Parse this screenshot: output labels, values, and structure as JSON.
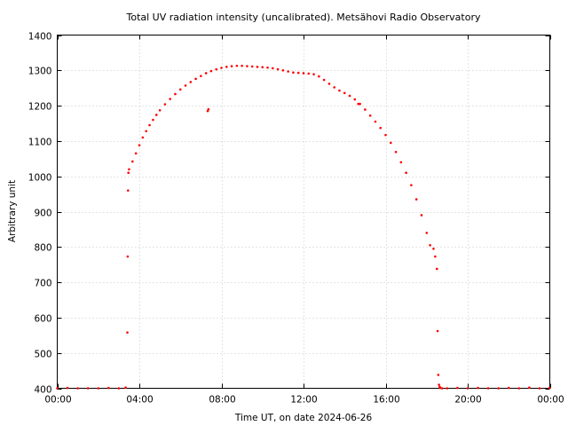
{
  "chart_data": {
    "type": "scatter",
    "title": "Total UV radiation intensity (uncalibrated). Metsähovi Radio Observatory",
    "xlabel": "Time UT, on date 2024-06-26",
    "ylabel": "Arbitrary unit",
    "xlim": [
      "00:00",
      "24:00"
    ],
    "ylim": [
      400,
      1400
    ],
    "x_ticks": [
      "00:00",
      "04:00",
      "08:00",
      "12:00",
      "16:00",
      "20:00",
      "00:00"
    ],
    "y_ticks": [
      400,
      500,
      600,
      700,
      800,
      900,
      1000,
      1100,
      1200,
      1300,
      1400
    ],
    "grid": true,
    "legend": "none",
    "marker_color": "#ff0000",
    "series": [
      {
        "x": [
          "00:00",
          "00:30",
          "01:00",
          "01:30",
          "02:00",
          "02:30",
          "03:00",
          "03:20",
          "03:25",
          "03:26",
          "03:27",
          "03:28",
          "03:30",
          "03:40",
          "03:50",
          "04:00",
          "04:10",
          "04:20",
          "04:30",
          "04:40",
          "04:50",
          "05:00",
          "05:15",
          "05:30",
          "05:45",
          "06:00",
          "06:15",
          "06:30",
          "06:45",
          "07:00",
          "07:15",
          "07:30",
          "07:45",
          "08:00",
          "08:15",
          "08:30",
          "08:45",
          "09:00",
          "09:15",
          "09:30",
          "09:45",
          "10:00",
          "10:15",
          "10:30",
          "10:45",
          "11:00",
          "11:15",
          "11:30",
          "11:45",
          "12:00",
          "12:15",
          "12:30",
          "12:45",
          "13:00",
          "13:15",
          "13:30",
          "13:45",
          "14:00",
          "14:15",
          "14:30",
          "14:45",
          "15:00",
          "15:15",
          "15:30",
          "15:45",
          "16:00",
          "16:15",
          "16:30",
          "16:45",
          "17:00",
          "17:15",
          "17:30",
          "17:45",
          "18:00",
          "18:10",
          "18:20",
          "18:25",
          "18:30",
          "18:32",
          "18:34",
          "18:36",
          "18:38",
          "18:40",
          "18:45",
          "19:00",
          "19:30",
          "20:00",
          "20:30",
          "21:00",
          "21:30",
          "22:00",
          "22:30",
          "23:00",
          "23:30",
          "23:59"
        ],
        "y": [
          400,
          401,
          400,
          400,
          400,
          401,
          400,
          402,
          558,
          773,
          960,
          1010,
          1020,
          1042,
          1065,
          1088,
          1110,
          1128,
          1145,
          1160,
          1174,
          1187,
          1204,
          1219,
          1233,
          1246,
          1257,
          1267,
          1276,
          1284,
          1292,
          1298,
          1303,
          1307,
          1310,
          1312,
          1313,
          1313,
          1312,
          1311,
          1310,
          1309,
          1308,
          1306,
          1303,
          1300,
          1297,
          1294,
          1293,
          1292,
          1291,
          1289,
          1283,
          1273,
          1262,
          1252,
          1243,
          1236,
          1228,
          1218,
          1205,
          1189,
          1172,
          1155,
          1137,
          1117,
          1095,
          1069,
          1040,
          1010,
          975,
          935,
          890,
          840,
          805,
          795,
          773,
          738,
          562,
          438,
          410,
          404,
          401,
          400,
          400,
          401,
          400,
          401,
          400,
          400,
          401,
          400,
          402,
          400,
          401
        ]
      },
      {
        "x": [
          "07:20",
          "07:22",
          "14:40"
        ],
        "y": [
          1185,
          1190,
          1205
        ]
      }
    ]
  }
}
